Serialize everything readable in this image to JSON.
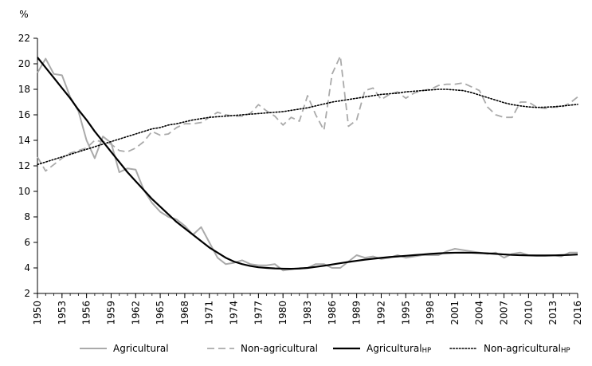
{
  "chart_data": {
    "type": "line",
    "ylabel": "%",
    "xlabel": "",
    "ylim": [
      2,
      22
    ],
    "yticks": [
      2,
      4,
      6,
      8,
      10,
      12,
      14,
      16,
      18,
      20,
      22
    ],
    "xlim": [
      1950,
      2016
    ],
    "xticks": [
      1950,
      1953,
      1956,
      1959,
      1962,
      1965,
      1968,
      1971,
      1974,
      1977,
      1980,
      1983,
      1986,
      1989,
      1992,
      1995,
      1998,
      2001,
      2004,
      2007,
      2010,
      2013,
      2016
    ],
    "grid": false,
    "legend_position": "bottom",
    "x": [
      1950,
      1951,
      1952,
      1953,
      1954,
      1955,
      1956,
      1957,
      1958,
      1959,
      1960,
      1961,
      1962,
      1963,
      1964,
      1965,
      1966,
      1967,
      1968,
      1969,
      1970,
      1971,
      1972,
      1973,
      1974,
      1975,
      1976,
      1977,
      1978,
      1979,
      1980,
      1981,
      1982,
      1983,
      1984,
      1985,
      1986,
      1987,
      1988,
      1989,
      1990,
      1991,
      1992,
      1993,
      1994,
      1995,
      1996,
      1997,
      1998,
      1999,
      2000,
      2001,
      2002,
      2003,
      2004,
      2005,
      2006,
      2007,
      2008,
      2009,
      2010,
      2011,
      2012,
      2013,
      2014,
      2015,
      2016
    ],
    "series": [
      {
        "name": "Agricultural",
        "style": "solid-thin",
        "color": "#aaaaaa",
        "values": [
          19.3,
          20.4,
          19.2,
          19.1,
          17.4,
          16.3,
          14.0,
          12.6,
          14.3,
          13.8,
          11.5,
          11.8,
          11.7,
          10.1,
          9.1,
          8.4,
          8.0,
          7.8,
          7.3,
          6.6,
          7.2,
          6.0,
          4.8,
          4.3,
          4.4,
          4.6,
          4.3,
          4.2,
          4.2,
          4.3,
          3.8,
          3.9,
          4.0,
          4.0,
          4.3,
          4.3,
          4.0,
          4.0,
          4.5,
          5.0,
          4.8,
          4.9,
          4.7,
          4.8,
          5.0,
          4.8,
          4.9,
          5.0,
          5.0,
          5.0,
          5.3,
          5.5,
          5.4,
          5.3,
          5.2,
          5.1,
          5.2,
          4.8,
          5.1,
          5.2,
          5.0,
          5.0,
          5.0,
          5.0,
          4.9,
          5.2,
          5.2
        ]
      },
      {
        "name": "Non-agricultural",
        "style": "dashed",
        "color": "#aaaaaa",
        "values": [
          12.7,
          11.6,
          12.1,
          12.6,
          13.0,
          13.2,
          13.4,
          14.0,
          13.9,
          13.7,
          13.2,
          13.1,
          13.4,
          13.9,
          14.7,
          14.4,
          14.5,
          15.0,
          15.3,
          15.3,
          15.4,
          15.8,
          16.2,
          16.0,
          15.9,
          15.9,
          16.1,
          16.8,
          16.3,
          15.9,
          15.2,
          15.8,
          15.5,
          17.5,
          16.0,
          14.8,
          19.2,
          20.6,
          15.1,
          15.6,
          17.9,
          18.1,
          17.2,
          17.6,
          17.8,
          17.3,
          17.7,
          17.9,
          18.0,
          18.3,
          18.4,
          18.4,
          18.5,
          18.2,
          17.9,
          16.6,
          16.0,
          15.8,
          15.8,
          17.0,
          17.0,
          16.6,
          16.5,
          16.6,
          16.6,
          16.9,
          17.4
        ]
      },
      {
        "name": "Agricultural-HP",
        "style": "solid-thick",
        "color": "#000000",
        "values": [
          20.5,
          19.7,
          18.9,
          18.1,
          17.3,
          16.4,
          15.6,
          14.7,
          13.9,
          13.1,
          12.3,
          11.5,
          10.8,
          10.1,
          9.4,
          8.8,
          8.2,
          7.6,
          7.1,
          6.6,
          6.1,
          5.6,
          5.2,
          4.8,
          4.5,
          4.3,
          4.15,
          4.05,
          4.0,
          3.96,
          3.94,
          3.93,
          3.95,
          4.0,
          4.08,
          4.17,
          4.27,
          4.37,
          4.47,
          4.56,
          4.65,
          4.72,
          4.79,
          4.85,
          4.9,
          4.95,
          5.0,
          5.05,
          5.1,
          5.14,
          5.17,
          5.19,
          5.2,
          5.19,
          5.17,
          5.14,
          5.1,
          5.06,
          5.02,
          5.0,
          4.98,
          4.97,
          4.97,
          4.98,
          5.0,
          5.02,
          5.05
        ]
      },
      {
        "name": "Non-agricultural-HP",
        "style": "dotted",
        "color": "#000000",
        "values": [
          12.1,
          12.3,
          12.5,
          12.7,
          12.9,
          13.1,
          13.3,
          13.5,
          13.7,
          13.9,
          14.1,
          14.3,
          14.5,
          14.7,
          14.9,
          15.0,
          15.2,
          15.3,
          15.45,
          15.6,
          15.7,
          15.8,
          15.85,
          15.9,
          15.95,
          16.0,
          16.05,
          16.1,
          16.15,
          16.2,
          16.25,
          16.35,
          16.45,
          16.55,
          16.7,
          16.85,
          17.0,
          17.1,
          17.2,
          17.3,
          17.4,
          17.5,
          17.6,
          17.65,
          17.7,
          17.8,
          17.85,
          17.9,
          17.95,
          18.0,
          18.0,
          17.95,
          17.9,
          17.75,
          17.55,
          17.35,
          17.15,
          16.95,
          16.8,
          16.7,
          16.62,
          16.58,
          16.6,
          16.63,
          16.68,
          16.75,
          16.82
        ]
      }
    ]
  },
  "legend": {
    "items": [
      {
        "label": "Agricultural",
        "suffix": ""
      },
      {
        "label": "Non-agricultural",
        "suffix": ""
      },
      {
        "label": "Agricultural",
        "suffix": "HP"
      },
      {
        "label": "Non-agricultural",
        "suffix": "HP"
      }
    ]
  }
}
